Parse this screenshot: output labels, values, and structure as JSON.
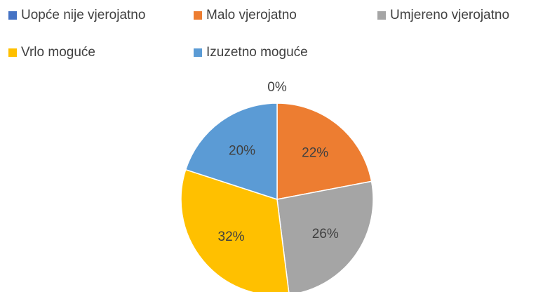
{
  "chart_data": {
    "type": "pie",
    "categories": [
      "Uopće nije vjerojatno",
      "Malo vjerojatno",
      "Umjereno vjerojatno",
      "Vrlo moguće",
      "Izuzetno moguće"
    ],
    "values": [
      0,
      22,
      26,
      32,
      20
    ],
    "value_labels": [
      "0%",
      "22%",
      "26%",
      "32%",
      "20%"
    ],
    "colors": [
      "#4472c4",
      "#ed7d31",
      "#a5a5a5",
      "#ffc000",
      "#5b9bd5"
    ],
    "legend": "top"
  }
}
